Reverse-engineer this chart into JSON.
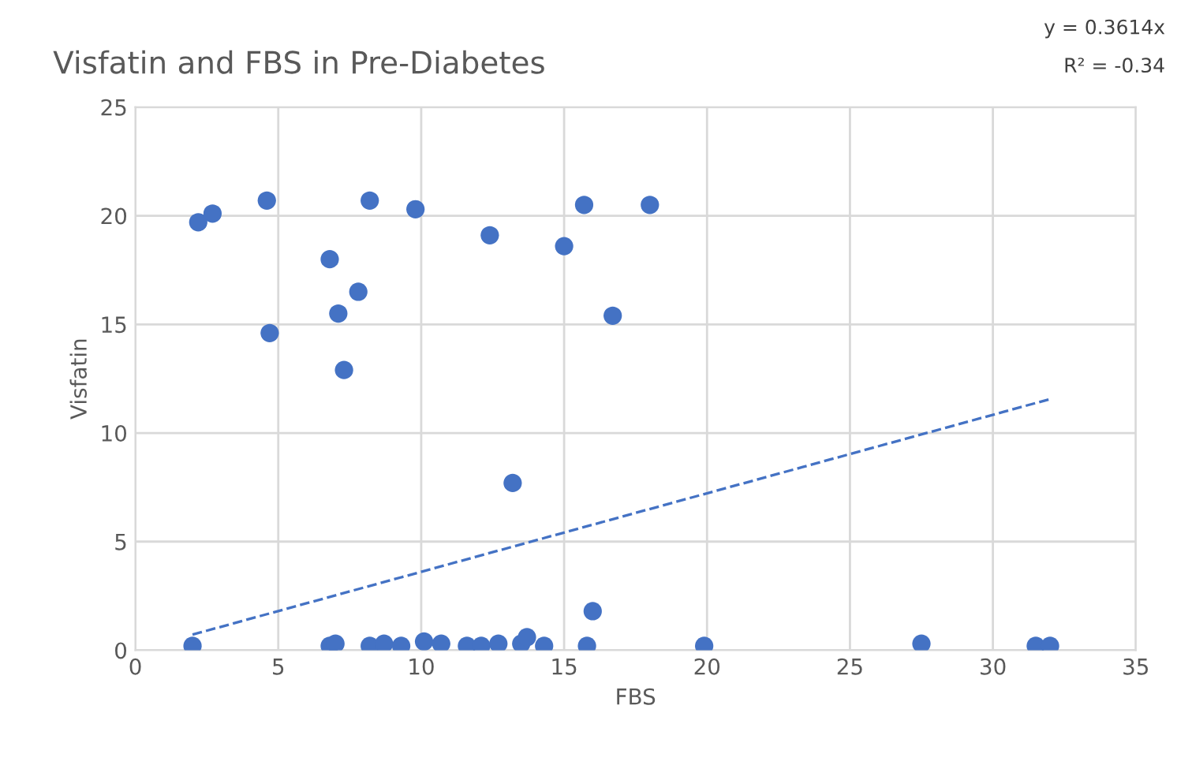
{
  "chart_data": {
    "type": "scatter",
    "title": "Visfatin and FBS in Pre-Diabetes",
    "xlabel": "FBS",
    "ylabel": "Visfatin",
    "series": [
      {
        "color": "#4472c4",
        "marker": "circle",
        "x": [
          2.2,
          2.7,
          4.6,
          4.7,
          6.8,
          7.1,
          7.3,
          7.8,
          8.2,
          9.8,
          12.4,
          13.2,
          15.0,
          15.7,
          16.7,
          18.0,
          16.0,
          2.0,
          6.8,
          7.0,
          8.2,
          8.7,
          9.3,
          10.1,
          10.7,
          11.6,
          12.1,
          12.7,
          13.5,
          13.7,
          14.3,
          15.8,
          19.9,
          27.5,
          31.5,
          32.0
        ],
        "values": [
          19.7,
          20.1,
          20.7,
          14.6,
          18.0,
          15.5,
          12.9,
          16.5,
          20.7,
          20.3,
          19.1,
          7.7,
          18.6,
          20.5,
          15.4,
          20.5,
          1.8,
          0.2,
          0.2,
          0.3,
          0.2,
          0.3,
          0.2,
          0.4,
          0.3,
          0.2,
          0.2,
          0.3,
          0.3,
          0.6,
          0.2,
          0.2,
          0.2,
          0.3,
          0.2,
          0.2
        ]
      },
      {
        "type": "line",
        "color": "#4472c4",
        "line_style": "dashed",
        "x": [
          2.0,
          32.0
        ],
        "values": [
          0.72,
          11.56
        ]
      }
    ],
    "annotations": [
      "y = 0.3614x",
      "R² = -0.34"
    ],
    "xlim": [
      0,
      35
    ],
    "xticks": [
      0,
      5,
      10,
      15,
      20,
      25,
      30,
      35
    ],
    "ylim": [
      0,
      25
    ],
    "yticks": [
      0,
      5,
      10,
      15,
      20,
      25
    ],
    "grid": true,
    "legend": false
  }
}
